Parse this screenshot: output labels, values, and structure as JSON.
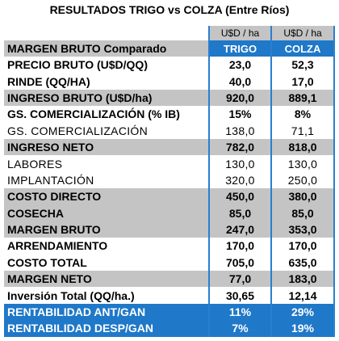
{
  "title": "RESULTADOS TRIGO vs COLZA (Entre Ríos)",
  "header": {
    "units": [
      "U$D / ha",
      "U$D / ha"
    ],
    "label": "MARGEN BRUTO Comparado",
    "columns": [
      "TRIGO",
      "COLZA"
    ]
  },
  "rows": [
    {
      "label": "PRECIO BRUTO (U$D/QQ)",
      "trigo": "23,0",
      "colza": "52,3",
      "style": "bold"
    },
    {
      "label": "RINDE (QQ/HA)",
      "trigo": "40,0",
      "colza": "17,0",
      "style": "bold"
    },
    {
      "label": "INGRESO BRUTO (U$D/ha)",
      "trigo": "920,0",
      "colza": "889,1",
      "style": "gray"
    },
    {
      "label": "GS. COMERCIALIZACIÓN (% IB)",
      "trigo": "15%",
      "colza": "8%",
      "style": "bold"
    },
    {
      "label": "GS. COMERCIALIZACIÓN",
      "trigo": "138,0",
      "colza": "71,1",
      "style": "plain"
    },
    {
      "label": "INGRESO NETO",
      "trigo": "782,0",
      "colza": "818,0",
      "style": "gray"
    },
    {
      "label": "LABORES",
      "trigo": "130,0",
      "colza": "130,0",
      "style": "plain"
    },
    {
      "label": "IMPLANTACIÓN",
      "trigo": "320,0",
      "colza": "250,0",
      "style": "plain"
    },
    {
      "label": "COSTO DIRECTO",
      "trigo": "450,0",
      "colza": "380,0",
      "style": "gray"
    },
    {
      "label": "COSECHA",
      "trigo": "85,0",
      "colza": "85,0",
      "style": "gray"
    },
    {
      "label": "MARGEN BRUTO",
      "trigo": "247,0",
      "colza": "353,0",
      "style": "gray"
    },
    {
      "label": "ARRENDAMIENTO",
      "trigo": "170,0",
      "colza": "170,0",
      "style": "bold"
    },
    {
      "label": "COSTO TOTAL",
      "trigo": "705,0",
      "colza": "635,0",
      "style": "bold"
    },
    {
      "label": "MARGEN NETO",
      "trigo": "77,0",
      "colza": "183,0",
      "style": "gray"
    },
    {
      "label": "Inversión Total (QQ/ha.)",
      "trigo": "30,65",
      "colza": "12,14",
      "style": "bold"
    },
    {
      "label": "RENTABILIDAD ANT/GAN",
      "trigo": "11%",
      "colza": "29%",
      "style": "blue"
    },
    {
      "label": "RENTABILIDAD DESP/GAN",
      "trigo": "7%",
      "colza": "19%",
      "style": "blue"
    }
  ]
}
